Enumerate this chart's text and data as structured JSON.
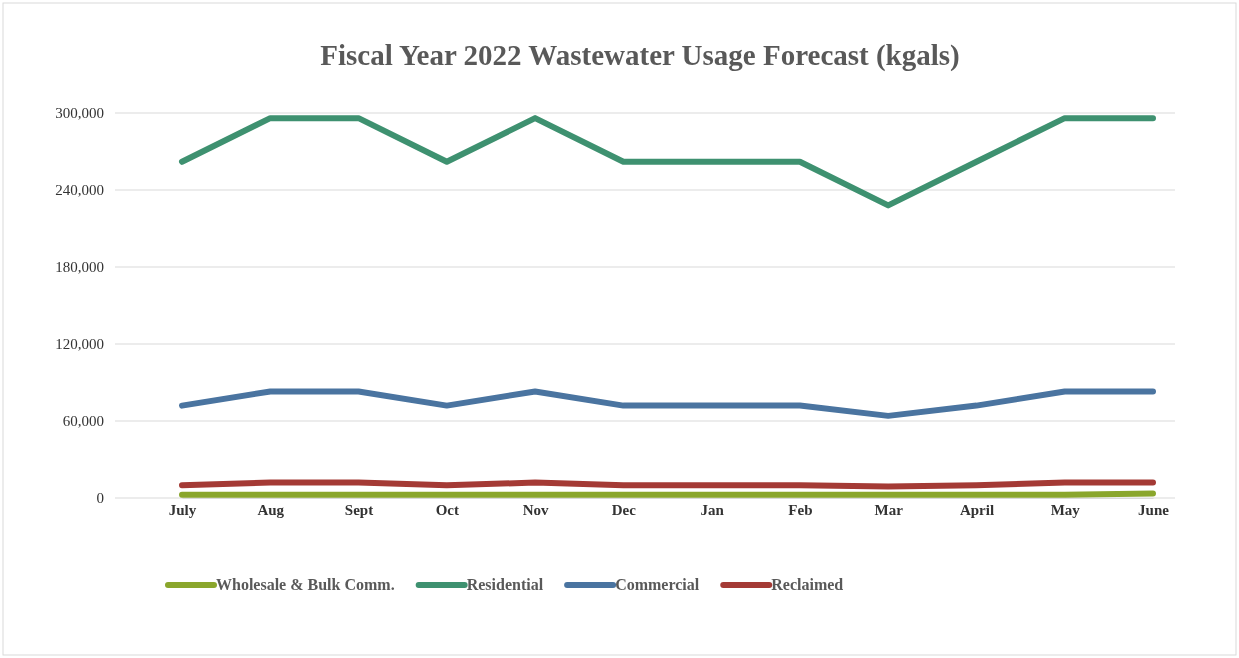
{
  "chart_data": {
    "type": "line",
    "title": "Fiscal Year 2022 Wastewater Usage Forecast (kgals)",
    "categories": [
      "July",
      "Aug",
      "Sept",
      "Oct",
      "Nov",
      "Dec",
      "Jan",
      "Feb",
      "Mar",
      "April",
      "May",
      "June"
    ],
    "series": [
      {
        "name": "Wholesale & Bulk Comm.",
        "color": "#8aa62c",
        "values": [
          2500,
          2500,
          2500,
          2500,
          2500,
          2500,
          2500,
          2500,
          2500,
          2500,
          2500,
          3500
        ]
      },
      {
        "name": "Residential",
        "color": "#3e9170",
        "values": [
          262000,
          296000,
          296000,
          262000,
          296000,
          262000,
          262000,
          262000,
          228000,
          262000,
          296000,
          296000
        ]
      },
      {
        "name": "Commercial",
        "color": "#4a74a0",
        "values": [
          72000,
          83000,
          83000,
          72000,
          83000,
          72000,
          72000,
          72000,
          64000,
          72000,
          83000,
          83000
        ]
      },
      {
        "name": "Reclaimed",
        "color": "#a43a35",
        "values": [
          10000,
          12000,
          12000,
          10000,
          12000,
          10000,
          10000,
          10000,
          9000,
          10000,
          12000,
          12000
        ]
      }
    ],
    "ylim": [
      0,
      300000
    ],
    "yticks": [
      {
        "value": 0,
        "label": "0"
      },
      {
        "value": 60000,
        "label": "60,000"
      },
      {
        "value": 120000,
        "label": "120,000"
      },
      {
        "value": 180000,
        "label": "180,000"
      },
      {
        "value": 240000,
        "label": "240,000"
      },
      {
        "value": 300000,
        "label": "300,000"
      }
    ],
    "grid": "y",
    "legend": "bottom",
    "marker": "none",
    "line_style": "solid"
  }
}
